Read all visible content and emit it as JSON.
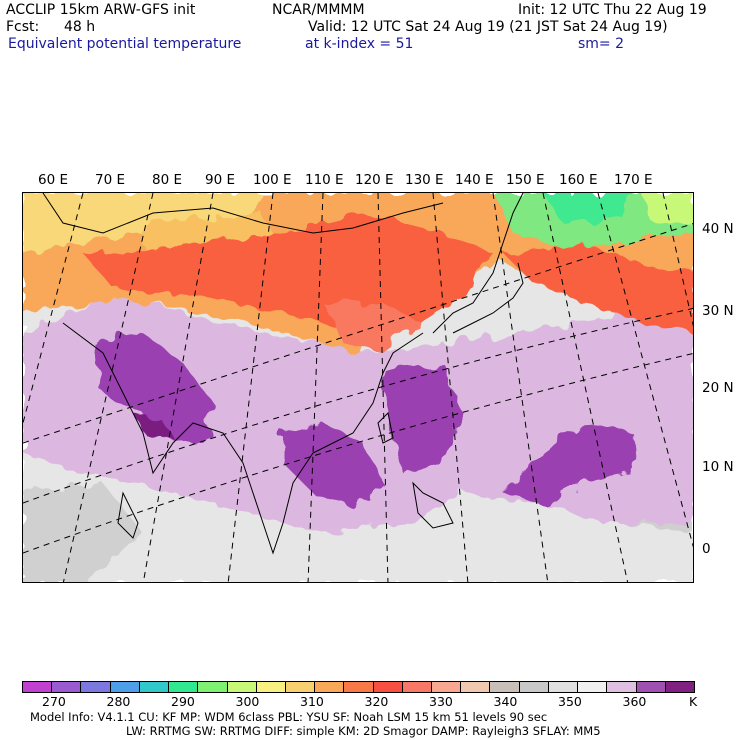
{
  "header": {
    "model_line": "ACCLIP 15km ARW-GFS init",
    "org": "NCAR/MMMM",
    "init_line": "Init: 12 UTC Thu 22 Aug 19",
    "fcst_label": "Fcst:",
    "fcst_value": "48 h",
    "valid_line": "Valid: 12 UTC Sat 24 Aug 19 (21 JST Sat 24 Aug 19)",
    "field_name": "Equivalent potential temperature",
    "level_line": "at k-index =  51",
    "smooth_line": "sm= 2"
  },
  "map": {
    "lon_labels": [
      "60 E",
      "70 E",
      "80 E",
      "90 E",
      "100 E",
      "110 E",
      "120 E",
      "130 E",
      "140 E",
      "150 E",
      "160 E",
      "170 E"
    ],
    "lat_labels": [
      "40 N",
      "30 N",
      "20 N",
      "10 N",
      "0"
    ]
  },
  "colorbar": {
    "unit": "K",
    "tick_labels": [
      "270",
      "280",
      "290",
      "300",
      "310",
      "320",
      "330",
      "340",
      "350",
      "360"
    ],
    "colors": [
      "#c040d0",
      "#9a5ad0",
      "#7b78e0",
      "#4f9ee8",
      "#30c8c8",
      "#30e890",
      "#80f070",
      "#c8f878",
      "#f8f080",
      "#f8d070",
      "#f8a858",
      "#f87848",
      "#f85040",
      "#f87868",
      "#f8a890",
      "#f0c8b0",
      "#c8c0b8",
      "#c8c8c8",
      "#e0e0e0",
      "#f0f0f0",
      "#e0c0e0",
      "#a050b0",
      "#802080"
    ]
  },
  "footer": {
    "line1": "Model Info: V4.1.1    CU: KF       MP: WDM 6class  PBL: YSU       SF: Noah LSM    15 km   51 levels   90 sec",
    "line2": "LW: RRTMG   SW: RRTMG   DIFF: simple KM: 2D Smagor DAMP: Rayleigh3  SFLAY: MM5"
  }
}
